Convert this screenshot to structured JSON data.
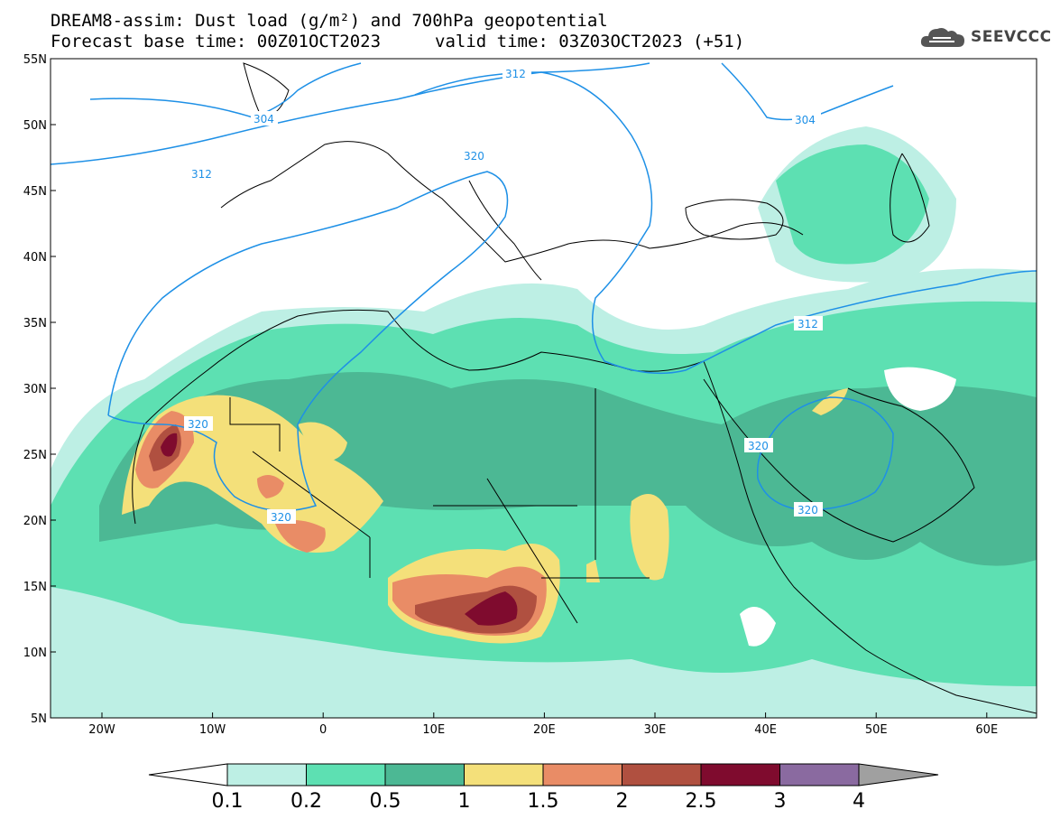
{
  "header": {
    "title": "DREAM8-assim: Dust load (g/m²) and 700hPa geopotential",
    "base_time": "Forecast base time: 00Z01OCT2023",
    "valid_time": "valid time: 03Z03OCT2023 (+51)"
  },
  "logo": {
    "text": "SEEVCCC",
    "icon": "cloud-icon"
  },
  "axes": {
    "lat_labels": [
      "55N",
      "50N",
      "45N",
      "40N",
      "35N",
      "30N",
      "25N",
      "20N",
      "15N",
      "10N",
      "5N"
    ],
    "lon_labels": [
      "20W",
      "10W",
      "0",
      "10E",
      "20E",
      "30E",
      "40E",
      "50E",
      "60E"
    ]
  },
  "colorbar": {
    "levels": [
      "0.1",
      "0.2",
      "0.5",
      "1",
      "1.5",
      "2",
      "2.5",
      "3",
      "4"
    ],
    "colors": [
      "#bdefe4",
      "#5de0b2",
      "#4cb894",
      "#f4e07a",
      "#e98c66",
      "#b05040",
      "#7f0b2e",
      "#8a6aa0",
      "#a0a0a0"
    ]
  },
  "contours": {
    "labels": [
      "312",
      "304",
      "312",
      "320",
      "320",
      "320",
      "304",
      "312",
      "320",
      "320"
    ]
  }
}
